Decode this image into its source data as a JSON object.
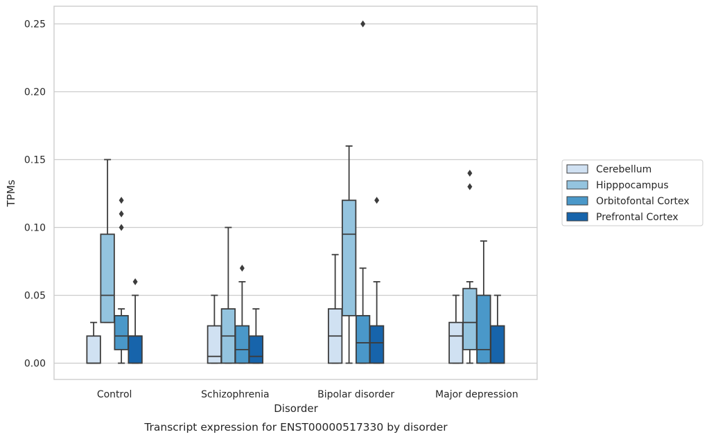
{
  "chart_data": {
    "type": "box",
    "xlabel": "Disorder",
    "ylabel": "TPMs",
    "caption": "Transcript expression for ENST00000517330 by disorder",
    "ylim": [
      -0.012,
      0.263
    ],
    "yticks": [
      0.0,
      0.05,
      0.1,
      0.15,
      0.2,
      0.25
    ],
    "ytick_labels": [
      "0.00",
      "0.05",
      "0.10",
      "0.15",
      "0.20",
      "0.25"
    ],
    "grid": "horizontal",
    "legend_position": "right",
    "categories": [
      "Control",
      "Schizophrenia",
      "Bipolar disorder",
      "Major depression"
    ],
    "series": [
      {
        "name": "Cerebellum",
        "color": "#d0e1f2",
        "boxes": [
          {
            "whisker_low": 0.0,
            "q1": 0.0,
            "median": 0.0,
            "q3": 0.02,
            "whisker_high": 0.03,
            "outliers": []
          },
          {
            "whisker_low": 0.0,
            "q1": 0.0,
            "median": 0.005,
            "q3": 0.0275,
            "whisker_high": 0.05,
            "outliers": []
          },
          {
            "whisker_low": 0.0,
            "q1": 0.0,
            "median": 0.02,
            "q3": 0.04,
            "whisker_high": 0.08,
            "outliers": []
          },
          {
            "whisker_low": 0.0,
            "q1": 0.0,
            "median": 0.02,
            "q3": 0.03,
            "whisker_high": 0.05,
            "outliers": []
          }
        ]
      },
      {
        "name": "Hipppocampus",
        "color": "#94c4df",
        "boxes": [
          {
            "whisker_low": 0.03,
            "q1": 0.03,
            "median": 0.05,
            "q3": 0.095,
            "whisker_high": 0.15,
            "outliers": []
          },
          {
            "whisker_low": 0.0,
            "q1": 0.0,
            "median": 0.02,
            "q3": 0.04,
            "whisker_high": 0.1,
            "outliers": []
          },
          {
            "whisker_low": 0.0,
            "q1": 0.035,
            "median": 0.095,
            "q3": 0.12,
            "whisker_high": 0.16,
            "outliers": []
          },
          {
            "whisker_low": 0.0,
            "q1": 0.01,
            "median": 0.03,
            "q3": 0.055,
            "whisker_high": 0.06,
            "outliers": [
              0.13,
              0.14
            ]
          }
        ]
      },
      {
        "name": "Orbitofontal Cortex",
        "color": "#4a98c9",
        "boxes": [
          {
            "whisker_low": 0.0,
            "q1": 0.01,
            "median": 0.02,
            "q3": 0.035,
            "whisker_high": 0.04,
            "outliers": [
              0.1,
              0.11,
              0.12
            ]
          },
          {
            "whisker_low": 0.0,
            "q1": 0.0,
            "median": 0.01,
            "q3": 0.0275,
            "whisker_high": 0.06,
            "outliers": [
              0.07
            ]
          },
          {
            "whisker_low": 0.0,
            "q1": 0.0,
            "median": 0.015,
            "q3": 0.035,
            "whisker_high": 0.07,
            "outliers": [
              0.25
            ]
          },
          {
            "whisker_low": 0.0,
            "q1": 0.0,
            "median": 0.01,
            "q3": 0.05,
            "whisker_high": 0.09,
            "outliers": []
          }
        ]
      },
      {
        "name": "Prefrontal Cortex",
        "color": "#1764ab",
        "boxes": [
          {
            "whisker_low": 0.0,
            "q1": 0.0,
            "median": 0.02,
            "q3": 0.02,
            "whisker_high": 0.05,
            "outliers": [
              0.06
            ]
          },
          {
            "whisker_low": 0.0,
            "q1": 0.0,
            "median": 0.005,
            "q3": 0.02,
            "whisker_high": 0.04,
            "outliers": []
          },
          {
            "whisker_low": 0.0,
            "q1": 0.0,
            "median": 0.015,
            "q3": 0.0275,
            "whisker_high": 0.06,
            "outliers": [
              0.12
            ]
          },
          {
            "whisker_low": 0.0,
            "q1": 0.0,
            "median": 0.0,
            "q3": 0.0275,
            "whisker_high": 0.05,
            "outliers": []
          }
        ]
      }
    ]
  }
}
